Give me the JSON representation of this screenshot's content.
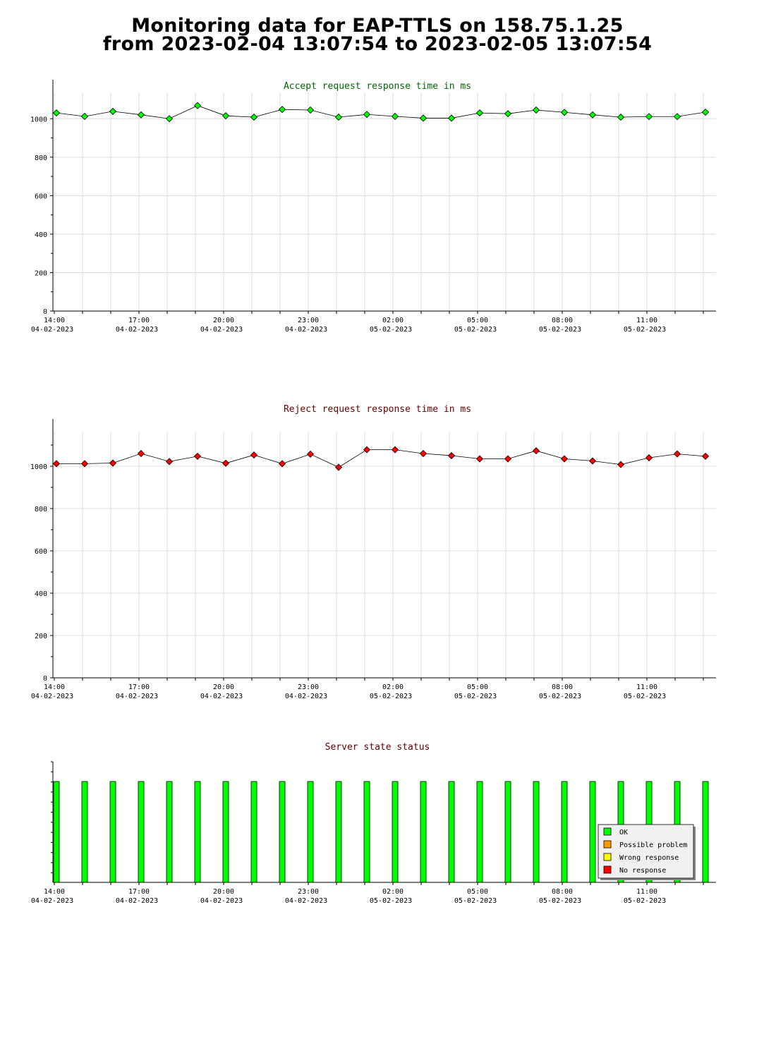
{
  "page": {
    "title_line1": "Monitoring data for EAP-TTLS on 158.75.1.25",
    "title_line2": "from 2023-02-04 13:07:54 to 2023-02-05 13:07:54"
  },
  "colors": {
    "accept": "#00ff00",
    "accept_title": "#006600",
    "reject": "#ff0000",
    "reject_title": "#660000",
    "status_title": "#660000",
    "ok": "#00ff00",
    "possible_problem": "#ff9900",
    "wrong_response": "#ffff00",
    "no_response": "#ff0000"
  },
  "chart_data": [
    {
      "id": "accept",
      "type": "line",
      "title": "Accept request response time in ms",
      "ylim": [
        0,
        1100
      ],
      "yticks": [
        0,
        200,
        400,
        600,
        800,
        1000
      ],
      "xticks": [
        {
          "time": "14:00",
          "date": "04-02-2023"
        },
        {
          "time": "17:00",
          "date": "04-02-2023"
        },
        {
          "time": "20:00",
          "date": "04-02-2023"
        },
        {
          "time": "23:00",
          "date": "04-02-2023"
        },
        {
          "time": "02:00",
          "date": "05-02-2023"
        },
        {
          "time": "05:00",
          "date": "05-02-2023"
        },
        {
          "time": "08:00",
          "date": "05-02-2023"
        },
        {
          "time": "11:00",
          "date": "05-02-2023"
        }
      ],
      "grid": true,
      "values": [
        1030,
        1012,
        1038,
        1020,
        1000,
        1068,
        1015,
        1008,
        1048,
        1045,
        1008,
        1022,
        1012,
        1003,
        1003,
        1030,
        1026,
        1045,
        1033,
        1020,
        1008,
        1011,
        1011,
        1034
      ]
    },
    {
      "id": "reject",
      "type": "line",
      "title": "Reject request response time in ms",
      "ylim": [
        0,
        1130
      ],
      "yticks": [
        0,
        200,
        400,
        600,
        800,
        1000
      ],
      "xticks": [
        {
          "time": "14:00",
          "date": "04-02-2023"
        },
        {
          "time": "17:00",
          "date": "04-02-2023"
        },
        {
          "time": "20:00",
          "date": "04-02-2023"
        },
        {
          "time": "23:00",
          "date": "04-02-2023"
        },
        {
          "time": "02:00",
          "date": "05-02-2023"
        },
        {
          "time": "05:00",
          "date": "05-02-2023"
        },
        {
          "time": "08:00",
          "date": "05-02-2023"
        },
        {
          "time": "11:00",
          "date": "05-02-2023"
        }
      ],
      "grid": true,
      "values": [
        1012,
        1012,
        1015,
        1060,
        1022,
        1047,
        1014,
        1053,
        1012,
        1057,
        995,
        1078,
        1078,
        1060,
        1050,
        1035,
        1035,
        1073,
        1035,
        1025,
        1008,
        1040,
        1058,
        1047
      ]
    },
    {
      "id": "status",
      "type": "bar",
      "title": "Server state status",
      "xticks": [
        {
          "time": "14:00",
          "date": "04-02-2023"
        },
        {
          "time": "17:00",
          "date": "04-02-2023"
        },
        {
          "time": "20:00",
          "date": "04-02-2023"
        },
        {
          "time": "23:00",
          "date": "04-02-2023"
        },
        {
          "time": "02:00",
          "date": "05-02-2023"
        },
        {
          "time": "05:00",
          "date": "05-02-2023"
        },
        {
          "time": "08:00",
          "date": "05-02-2023"
        },
        {
          "time": "11:00",
          "date": "05-02-2023"
        }
      ],
      "states": [
        "OK",
        "OK",
        "OK",
        "OK",
        "OK",
        "OK",
        "OK",
        "OK",
        "OK",
        "OK",
        "OK",
        "OK",
        "OK",
        "OK",
        "OK",
        "OK",
        "OK",
        "OK",
        "OK",
        "OK",
        "OK",
        "OK",
        "OK",
        "OK"
      ],
      "legend": {
        "position": "bottom-right",
        "items": [
          {
            "label": "OK",
            "color": "#00ff00"
          },
          {
            "label": "Possible problem",
            "color": "#ff9900"
          },
          {
            "label": "Wrong response",
            "color": "#ffff00"
          },
          {
            "label": "No response",
            "color": "#ff0000"
          }
        ]
      }
    }
  ]
}
